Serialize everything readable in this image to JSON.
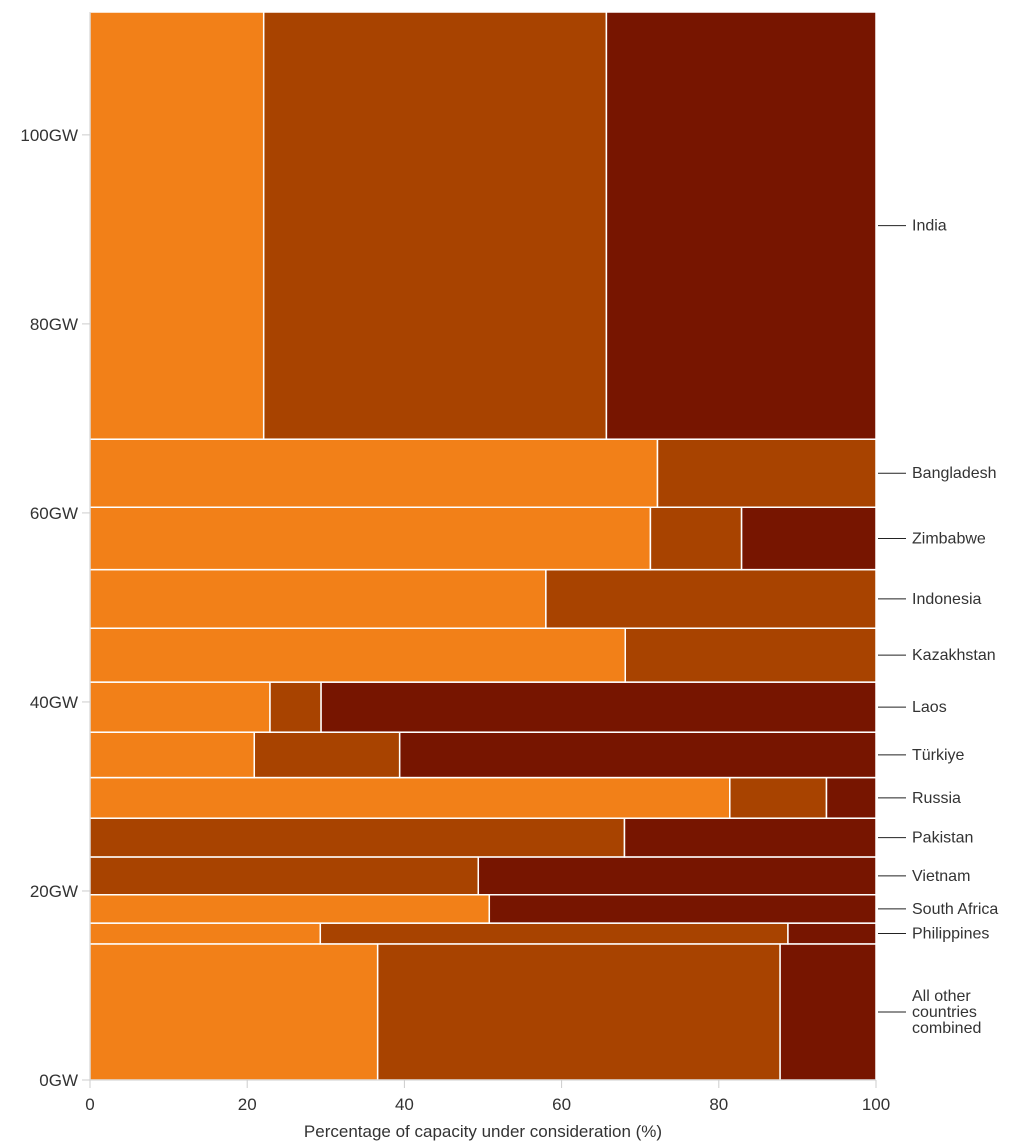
{
  "chart_data": {
    "type": "marimekko",
    "title": "",
    "xlabel": "Percentage of capacity under consideration (%)",
    "ylabel": "",
    "xlim": [
      0,
      100
    ],
    "ylim": [
      0,
      113
    ],
    "x_ticks": [
      0,
      20,
      40,
      60,
      80,
      100
    ],
    "y_ticks": [
      {
        "value": 0,
        "label": "0GW"
      },
      {
        "value": 20,
        "label": "20GW"
      },
      {
        "value": 40,
        "label": "40GW"
      },
      {
        "value": 60,
        "label": "60GW"
      },
      {
        "value": 80,
        "label": "80GW"
      },
      {
        "value": 100,
        "label": "100GW"
      }
    ],
    "segment_colors": [
      "#f28018",
      "#a84300",
      "#771500"
    ],
    "rows": [
      {
        "label": "All other countries combined",
        "from": 0,
        "to": 14.4,
        "segments": [
          36.6,
          51.2,
          12.2
        ]
      },
      {
        "label": "Philippines",
        "from": 14.4,
        "to": 16.6,
        "segments": [
          29.3,
          59.5,
          11.2
        ]
      },
      {
        "label": "South Africa",
        "from": 16.6,
        "to": 19.6,
        "segments": [
          50.8,
          0,
          49.2
        ]
      },
      {
        "label": "Vietnam",
        "from": 19.6,
        "to": 23.6,
        "segments": [
          0,
          49.4,
          50.6
        ]
      },
      {
        "label": "Pakistan",
        "from": 23.6,
        "to": 27.7,
        "segments": [
          0,
          68.0,
          32.0
        ]
      },
      {
        "label": "Russia",
        "from": 27.7,
        "to": 32.0,
        "segments": [
          81.4,
          12.3,
          6.3
        ]
      },
      {
        "label": "Türkiye",
        "from": 32.0,
        "to": 36.8,
        "segments": [
          20.9,
          18.5,
          60.6
        ]
      },
      {
        "label": "Laos",
        "from": 36.8,
        "to": 42.1,
        "segments": [
          22.9,
          6.5,
          70.6
        ]
      },
      {
        "label": "Kazakhstan",
        "from": 42.1,
        "to": 47.8,
        "segments": [
          68.1,
          31.9,
          0
        ]
      },
      {
        "label": "Indonesia",
        "from": 47.8,
        "to": 54.0,
        "segments": [
          58.0,
          42.0,
          0
        ]
      },
      {
        "label": "Zimbabwe",
        "from": 54.0,
        "to": 60.6,
        "segments": [
          71.3,
          11.6,
          17.1
        ]
      },
      {
        "label": "Bangladesh",
        "from": 60.6,
        "to": 67.8,
        "segments": [
          72.2,
          27.8,
          0
        ]
      },
      {
        "label": "India",
        "from": 67.8,
        "to": 113.0,
        "segments": [
          22.1,
          43.6,
          34.3
        ]
      }
    ]
  }
}
